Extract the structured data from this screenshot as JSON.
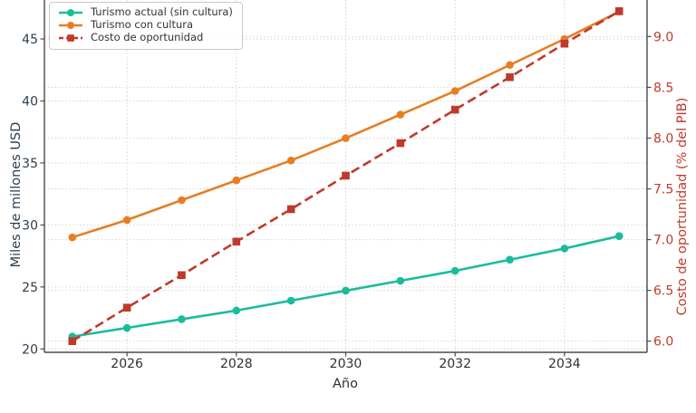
{
  "chart_data": {
    "type": "line",
    "title": "",
    "xlabel": "Año",
    "ylabel_left": "Miles de millones USD",
    "ylabel_right": "Costo de oportunidad (% del PIB)",
    "x": [
      2025,
      2026,
      2027,
      2028,
      2029,
      2030,
      2031,
      2032,
      2033,
      2034,
      2035
    ],
    "xticks": [
      2026,
      2028,
      2030,
      2032,
      2034
    ],
    "yticks_left": [
      20,
      25,
      30,
      35,
      40,
      45
    ],
    "yticks_right": [
      6.0,
      6.5,
      7.0,
      7.5,
      8.0,
      8.5,
      9.0
    ],
    "xlim": [
      2024.49,
      2035.51
    ],
    "ylim_left": [
      19.73,
      48.14
    ],
    "ylim_right": [
      5.89,
      9.36
    ],
    "grid": "dotted-both-axes",
    "legend_position": "upper-left",
    "series": [
      {
        "name": "Turismo actual (sin cultura)",
        "axis": "left",
        "color": "#1abc9c",
        "marker": "circle",
        "line_style": "solid",
        "values": [
          21.0,
          21.7,
          22.4,
          23.1,
          23.9,
          24.7,
          25.5,
          26.3,
          27.2,
          28.1,
          29.1
        ]
      },
      {
        "name": "Turismo con cultura",
        "axis": "left",
        "color": "#e67e22",
        "marker": "circle",
        "line_style": "solid",
        "values": [
          29.0,
          30.4,
          32.0,
          33.6,
          35.2,
          37.0,
          38.9,
          40.8,
          42.9,
          45.0,
          47.2
        ]
      },
      {
        "name": "Costo de oportunidad",
        "axis": "right",
        "color": "#c0392b",
        "marker": "square",
        "line_style": "dashed",
        "values": [
          6.0,
          6.33,
          6.65,
          6.98,
          7.3,
          7.63,
          7.95,
          8.28,
          8.6,
          8.93,
          9.25
        ]
      }
    ],
    "axis_colors": {
      "left": "#2c3e50",
      "right": "#c0392b",
      "x": "#303030"
    },
    "grid_color": "#d3d3d3",
    "spine_color": "#4a4a4a"
  }
}
